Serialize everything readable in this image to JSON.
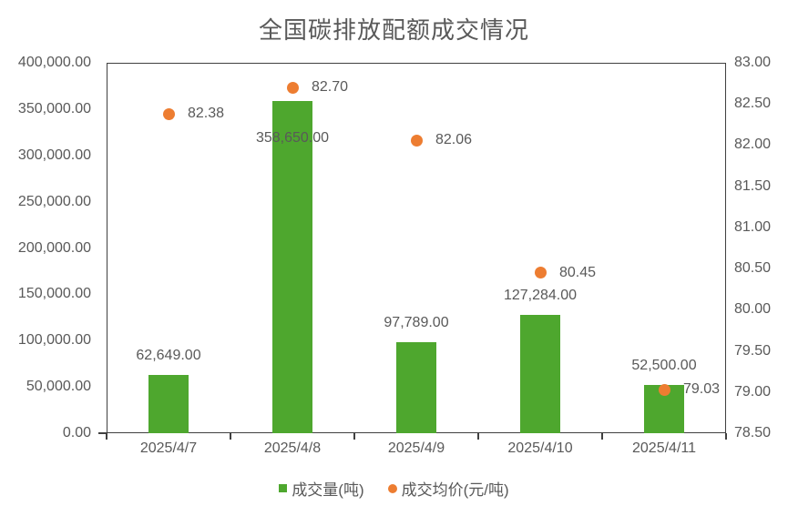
{
  "chart_data": {
    "type": "bar",
    "subtype": "combo-bar-scatter",
    "title": "全国碳排放配额成交情况",
    "categories": [
      "2025/4/7",
      "2025/4/8",
      "2025/4/9",
      "2025/4/10",
      "2025/4/11"
    ],
    "series": [
      {
        "name": "成交量(吨)",
        "type": "bar",
        "axis": "left",
        "values": [
          62649,
          358650,
          97789,
          127284,
          52500
        ],
        "labels": [
          "62,649.00",
          "358,650.00",
          "97,789.00",
          "127,284.00",
          "52,500.00"
        ],
        "label_inside": [
          false,
          true,
          false,
          false,
          false
        ]
      },
      {
        "name": "成交均价(元/吨)",
        "type": "scatter",
        "axis": "right",
        "values": [
          82.38,
          82.7,
          82.06,
          80.45,
          79.03
        ],
        "labels": [
          "82.38",
          "82.70",
          "82.06",
          "80.45",
          "79.03"
        ]
      }
    ],
    "left_axis": {
      "min": 0,
      "max": 400000,
      "step": 50000,
      "tick_labels": [
        "0.00",
        "50,000.00",
        "100,000.00",
        "150,000.00",
        "200,000.00",
        "250,000.00",
        "300,000.00",
        "350,000.00",
        "400,000.00"
      ]
    },
    "right_axis": {
      "min": 78.5,
      "max": 83.0,
      "step": 0.5,
      "tick_labels": [
        "78.50",
        "79.00",
        "79.50",
        "80.00",
        "80.50",
        "81.00",
        "81.50",
        "82.00",
        "82.50",
        "83.00"
      ]
    },
    "grid": false,
    "legend_position": "bottom",
    "colors": {
      "bar": "#4ea72e",
      "point": "#ed7d31",
      "axis_line": "#404040",
      "text": "#595959"
    }
  }
}
